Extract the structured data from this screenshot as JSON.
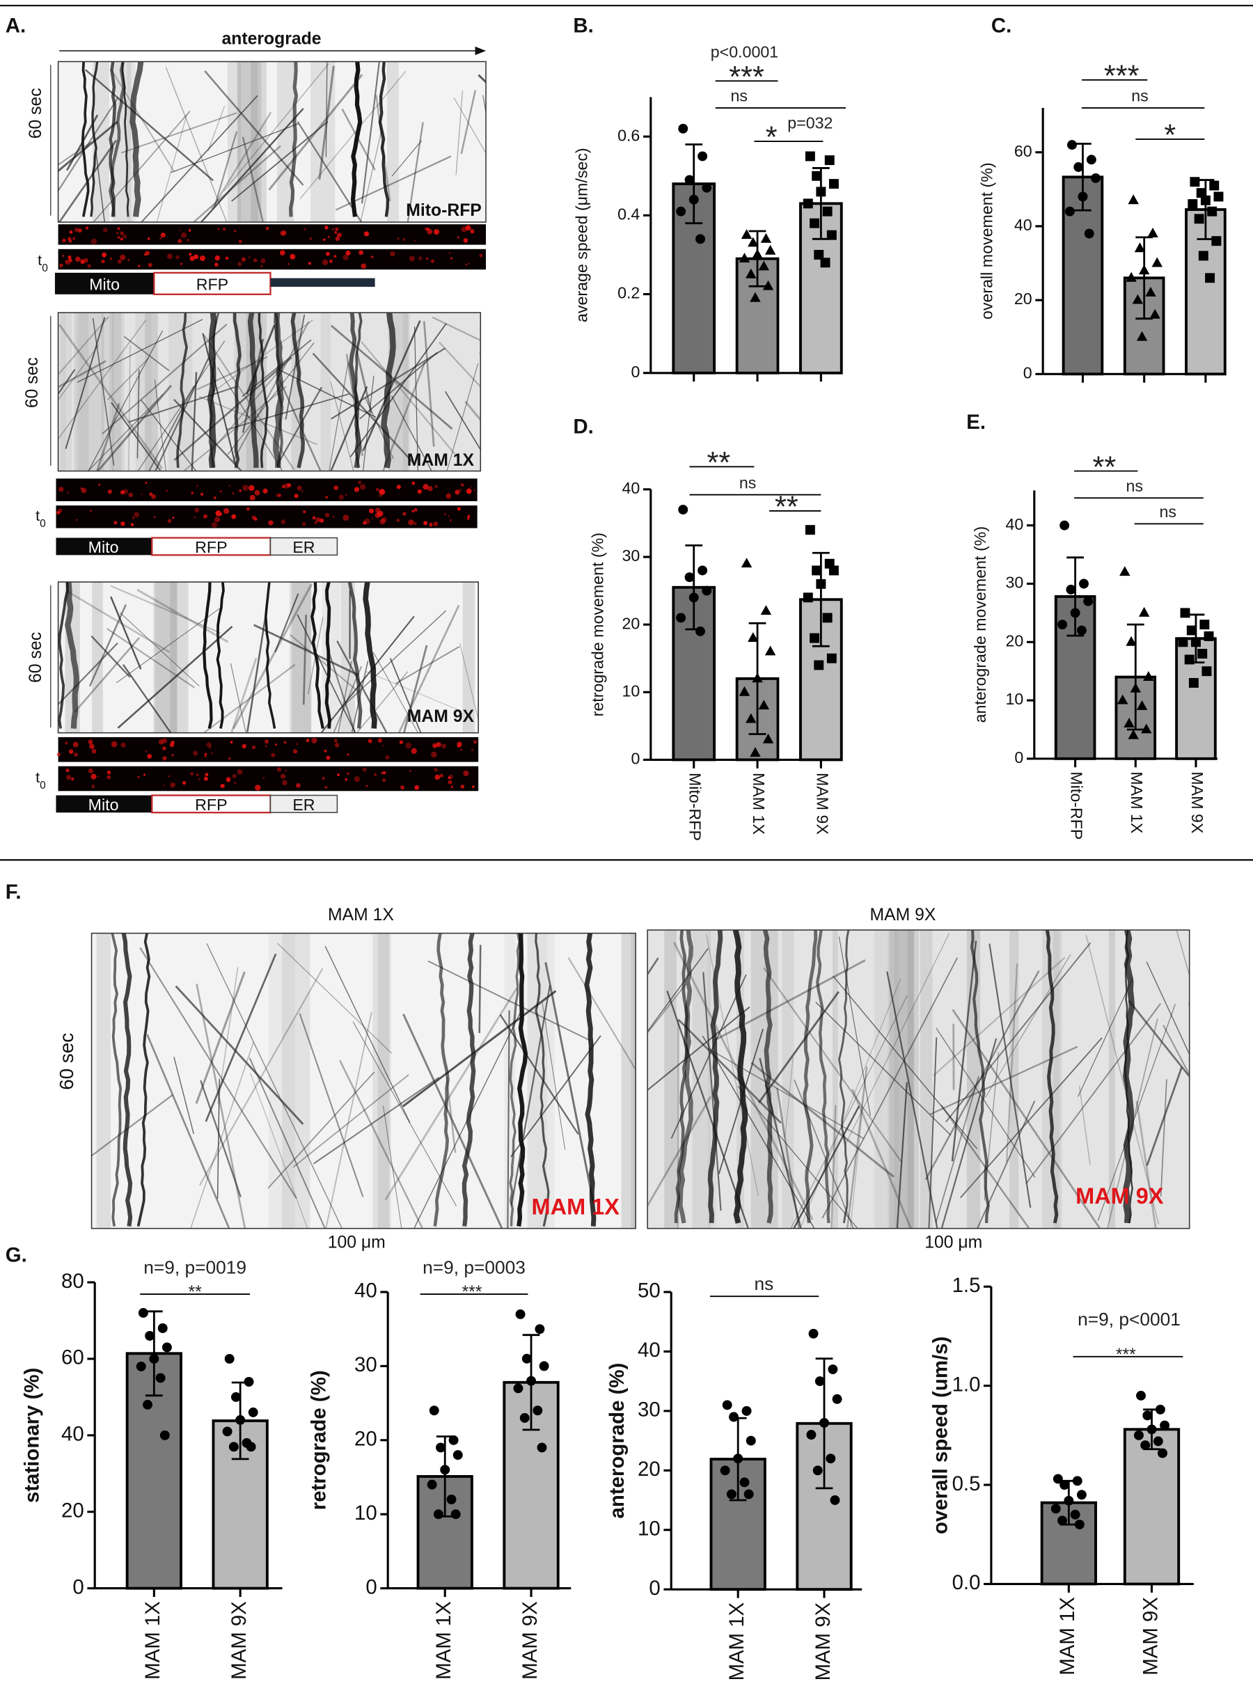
{
  "figure": {
    "panels": [
      "A.",
      "B.",
      "C.",
      "D.",
      "E.",
      "F.",
      "G."
    ],
    "arrow": "anterograde",
    "t0": {
      "base": "t",
      "sub": "0"
    },
    "kymos": [
      {
        "time": "60 sec",
        "label": "Mito-RFP",
        "construct": [
          "Mito",
          "RFP"
        ]
      },
      {
        "time": "60 sec",
        "label": "MAM 1X",
        "construct": [
          "Mito",
          "RFP",
          "ER"
        ]
      },
      {
        "time": "60 sec",
        "label": "MAM 9X",
        "construct": [
          "Mito",
          "RFP",
          "ER"
        ]
      }
    ],
    "f_time": "60 sec",
    "f_kymos": [
      {
        "title": "MAM 1X",
        "label": "MAM 1X",
        "scale": "100 μm"
      },
      {
        "title": "MAM 9X",
        "label": "MAM 9X",
        "scale": "100 μm"
      }
    ]
  },
  "chart_data": [
    {
      "type": "bar",
      "ylabel": "average speed (μm/sec)",
      "values": [
        0.48,
        0.29,
        0.43
      ],
      "errors": [
        0.1,
        0.07,
        0.09
      ],
      "points": [
        [
          0.62,
          0.55,
          0.49,
          0.47,
          0.44,
          0.41,
          0.34
        ],
        [
          0.35,
          0.34,
          0.33,
          0.31,
          0.3,
          0.29,
          0.27,
          0.25,
          0.22,
          0.19
        ],
        [
          0.55,
          0.54,
          0.5,
          0.48,
          0.46,
          0.43,
          0.41,
          0.38,
          0.35,
          0.3,
          0.28
        ]
      ],
      "colors": [
        "#707070",
        "#8e8e8e",
        "#bcbcbc"
      ],
      "markers": [
        "circle",
        "triangle",
        "square"
      ],
      "ylim": [
        0,
        0.7
      ],
      "yticks": [
        0,
        0.2,
        0.4,
        0.6
      ],
      "annotations": [
        "p<0.0001",
        "***",
        "ns",
        "*",
        "p=032"
      ]
    },
    {
      "type": "bar",
      "ylabel": "overall movement (%)",
      "values": [
        53.3,
        26,
        44.5
      ],
      "errors": [
        9,
        11,
        8
      ],
      "points": [
        [
          62,
          58,
          56,
          53,
          48,
          44,
          38
        ],
        [
          47,
          38,
          34,
          30,
          28,
          26,
          22,
          20,
          16,
          10
        ],
        [
          52,
          51,
          49,
          48,
          47,
          46,
          44,
          42,
          36,
          32,
          26
        ]
      ],
      "colors": [
        "#707070",
        "#8e8e8e",
        "#bcbcbc"
      ],
      "markers": [
        "circle",
        "triangle",
        "square"
      ],
      "ylim": [
        0,
        72
      ],
      "yticks": [
        0,
        20,
        40,
        60
      ],
      "annotations": [
        "***",
        "ns",
        "*"
      ]
    },
    {
      "type": "bar",
      "ylabel": "retrograde movement (%)",
      "categories": [
        "Mito-RFP",
        "MAM 1X",
        "MAM 9X"
      ],
      "values": [
        25.5,
        12,
        23.7
      ],
      "errors": [
        6.2,
        8.2,
        6.9
      ],
      "points": [
        [
          37,
          28,
          27,
          25,
          24,
          21,
          19
        ],
        [
          29,
          22,
          18,
          16,
          12,
          10,
          8,
          6,
          3,
          1
        ],
        [
          34,
          29,
          28,
          28,
          26,
          24,
          21,
          18,
          15,
          14
        ]
      ],
      "colors": [
        "#707070",
        "#8e8e8e",
        "#bcbcbc"
      ],
      "markers": [
        "circle",
        "triangle",
        "square"
      ],
      "ylim": [
        0,
        40
      ],
      "yticks": [
        0,
        10,
        20,
        30,
        40
      ],
      "annotations": [
        "**",
        "ns",
        "**"
      ]
    },
    {
      "type": "bar",
      "ylabel": "anterograde movement (%)",
      "categories": [
        "Mito-RFP",
        "MAM 1X",
        "MAM 9X"
      ],
      "values": [
        27.8,
        14,
        20.6
      ],
      "errors": [
        6.7,
        9,
        4.1
      ],
      "points": [
        [
          40,
          30,
          29,
          27,
          25,
          23,
          22
        ],
        [
          32,
          25,
          20,
          14,
          12,
          10,
          9,
          6,
          5,
          4
        ],
        [
          25,
          23,
          22,
          21,
          20,
          20,
          18,
          17,
          15,
          13
        ]
      ],
      "colors": [
        "#707070",
        "#8e8e8e",
        "#bcbcbc"
      ],
      "markers": [
        "circle",
        "triangle",
        "square"
      ],
      "ylim": [
        0,
        46
      ],
      "yticks": [
        0,
        10,
        20,
        30,
        40
      ],
      "annotations": [
        "**",
        "ns",
        "ns"
      ]
    },
    {
      "type": "bar",
      "ylabel": "stationary (%)",
      "categories": [
        "MAM 1X",
        "MAM 9X"
      ],
      "values": [
        61.4,
        43.8
      ],
      "errors": [
        11,
        10
      ],
      "points": [
        [
          72,
          68,
          66,
          63,
          60,
          58,
          55,
          48,
          40
        ],
        [
          60,
          54,
          50,
          46,
          44,
          41,
          38,
          37,
          37
        ]
      ],
      "colors": [
        "#7a7a7a",
        "#b8b8b8"
      ],
      "markers": [
        "circle",
        "circle"
      ],
      "ylim": [
        0,
        80
      ],
      "yticks": [
        0,
        20,
        40,
        60,
        80
      ],
      "annotations": [
        "n=9, p=0019",
        "**"
      ]
    },
    {
      "type": "bar",
      "ylabel": "retrograde (%)",
      "categories": [
        "MAM 1X",
        "MAM 9X"
      ],
      "values": [
        15.1,
        27.8
      ],
      "errors": [
        5.4,
        6.4
      ],
      "points": [
        [
          24,
          20,
          19,
          18,
          16,
          14,
          12,
          10,
          10
        ],
        [
          37,
          35,
          31,
          30,
          28,
          27,
          24,
          23,
          19
        ]
      ],
      "colors": [
        "#7a7a7a",
        "#b8b8b8"
      ],
      "markers": [
        "circle",
        "circle"
      ],
      "ylim": [
        0,
        40
      ],
      "yticks": [
        0,
        10,
        20,
        30,
        40
      ],
      "annotations": [
        "n=9, p=0003",
        "***"
      ]
    },
    {
      "type": "bar",
      "ylabel": "anterograde (%)",
      "categories": [
        "MAM 1X",
        "MAM 9X"
      ],
      "values": [
        21.9,
        27.9
      ],
      "errors": [
        6.9,
        10.9
      ],
      "points": [
        [
          31,
          30,
          29,
          25,
          22,
          20,
          18,
          16,
          16
        ],
        [
          43,
          37,
          35,
          32,
          28,
          26,
          22,
          20,
          15
        ]
      ],
      "colors": [
        "#7a7a7a",
        "#b8b8b8"
      ],
      "markers": [
        "circle",
        "circle"
      ],
      "ylim": [
        0,
        50
      ],
      "yticks": [
        0,
        10,
        20,
        30,
        40,
        50
      ],
      "annotations": [
        "ns"
      ]
    },
    {
      "type": "bar",
      "ylabel": "overall speed (um/s)",
      "categories": [
        "MAM 1X",
        "MAM 9X"
      ],
      "values": [
        0.41,
        0.78
      ],
      "errors": [
        0.11,
        0.1
      ],
      "points": [
        [
          0.53,
          0.52,
          0.5,
          0.45,
          0.42,
          0.38,
          0.35,
          0.32,
          0.3
        ],
        [
          0.95,
          0.88,
          0.85,
          0.8,
          0.78,
          0.75,
          0.72,
          0.7,
          0.66
        ]
      ],
      "colors": [
        "#7a7a7a",
        "#b8b8b8"
      ],
      "markers": [
        "circle",
        "circle"
      ],
      "ylim": [
        0,
        1.5
      ],
      "yticks": [
        {
          "value": 0,
          "label": "0.0"
        },
        0.5,
        {
          "value": 1,
          "label": "1.0"
        },
        1.5
      ],
      "annotations": [
        "n=9, p<0001",
        "***"
      ]
    }
  ]
}
